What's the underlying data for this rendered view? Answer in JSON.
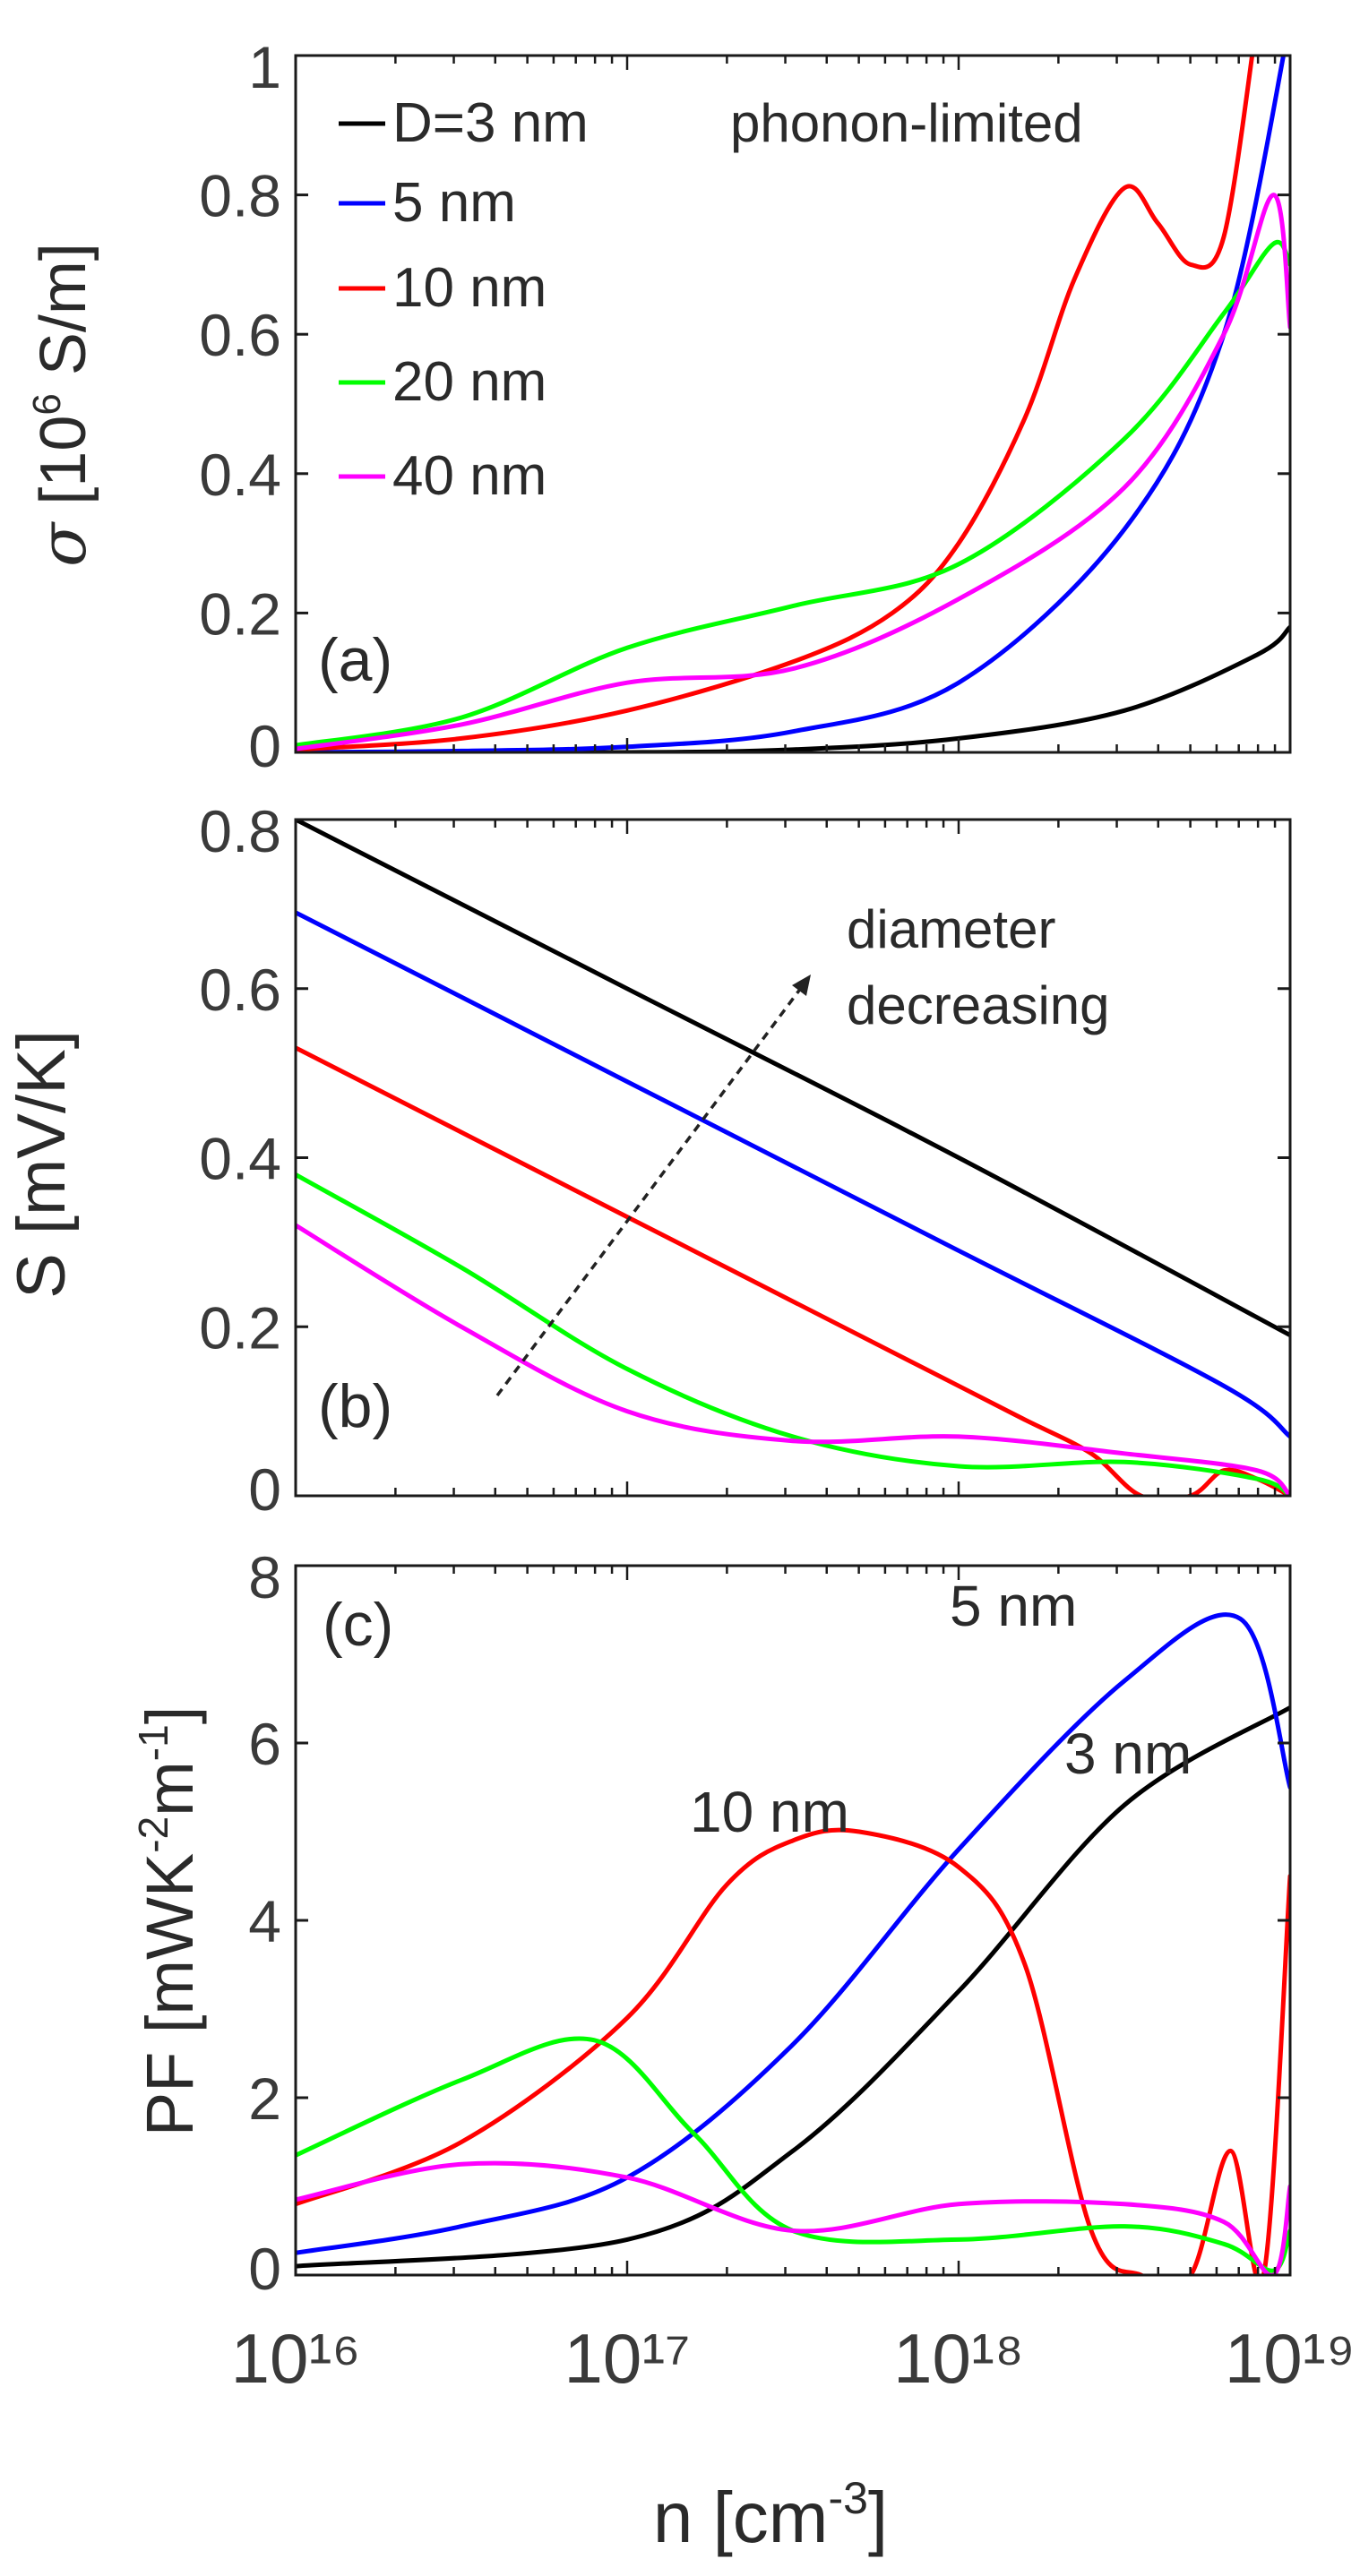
{
  "chart_data": [
    {
      "panel": "(a)",
      "type": "line",
      "xscale": "log",
      "xlim": [
        1e+16,
        1e+19
      ],
      "ylim": [
        0,
        1
      ],
      "yticks": [
        0,
        0.2,
        0.4,
        0.6,
        0.8,
        1
      ],
      "ytick_labels": [
        "0",
        "0.2",
        "0.4",
        "0.6",
        "0.8",
        "1"
      ],
      "ylabel": "σ [10⁶ S/m]",
      "annotation": "phonon-limited",
      "legend_title": "D=",
      "series": [
        {
          "name": "3 nm",
          "color": "#000000",
          "x": [
            16,
            17,
            17.5,
            18,
            18.5,
            18.9,
            19
          ],
          "y": [
            0,
            0,
            0.004,
            0.02,
            0.06,
            0.14,
            0.18
          ]
        },
        {
          "name": "5 nm",
          "color": "#0000ff",
          "x": [
            16,
            16.5,
            17,
            17.5,
            18,
            18.5,
            18.8,
            19
          ],
          "y": [
            0,
            0.002,
            0.008,
            0.03,
            0.1,
            0.32,
            0.6,
            1.05
          ]
        },
        {
          "name": "10 nm",
          "color": "#ff0000",
          "x": [
            16,
            16.5,
            17,
            17.5,
            17.8,
            18,
            18.2,
            18.35,
            18.5,
            18.6,
            18.7,
            18.8,
            18.9
          ],
          "y": [
            0.004,
            0.02,
            0.06,
            0.13,
            0.2,
            0.3,
            0.48,
            0.68,
            0.81,
            0.76,
            0.7,
            0.74,
            1.05
          ]
        },
        {
          "name": "20 nm",
          "color": "#00ff00",
          "x": [
            16,
            16.5,
            17,
            17.5,
            18,
            18.5,
            18.8,
            18.95,
            19
          ],
          "y": [
            0.01,
            0.05,
            0.15,
            0.21,
            0.27,
            0.45,
            0.63,
            0.73,
            0.7
          ]
        },
        {
          "name": "40 nm",
          "color": "#ff00ff",
          "x": [
            16,
            16.5,
            17,
            17.5,
            18,
            18.5,
            18.8,
            18.95,
            19
          ],
          "y": [
            0.005,
            0.04,
            0.1,
            0.12,
            0.22,
            0.38,
            0.6,
            0.8,
            0.61
          ]
        }
      ]
    },
    {
      "panel": "(b)",
      "type": "line",
      "xscale": "log",
      "xlim": [
        1e+16,
        1e+19
      ],
      "ylim": [
        0,
        0.8
      ],
      "yticks": [
        0,
        0.2,
        0.4,
        0.6,
        0.8
      ],
      "ytick_labels": [
        "0",
        "0.2",
        "0.4",
        "0.6",
        "0.8"
      ],
      "ylabel": "S [mV/K]",
      "annotation": [
        "diameter",
        "decreasing"
      ],
      "series": [
        {
          "name": "3 nm",
          "color": "#000000",
          "x": [
            16,
            17,
            18,
            19
          ],
          "y": [
            0.8,
            0.6,
            0.4,
            0.19
          ]
        },
        {
          "name": "5 nm",
          "color": "#0000ff",
          "x": [
            16,
            17,
            18,
            18.8,
            19
          ],
          "y": [
            0.69,
            0.49,
            0.29,
            0.13,
            0.07
          ]
        },
        {
          "name": "10 nm",
          "color": "#ff0000",
          "x": [
            16,
            17,
            18,
            18.2,
            18.4,
            18.55,
            18.7,
            18.8,
            18.9,
            19
          ],
          "y": [
            0.53,
            0.33,
            0.13,
            0.09,
            0.05,
            0.0,
            0.0,
            0.03,
            0.02,
            0.0
          ]
        },
        {
          "name": "20 nm",
          "color": "#00ff00",
          "x": [
            16,
            16.5,
            17,
            17.5,
            18,
            18.5,
            18.9,
            19
          ],
          "y": [
            0.38,
            0.27,
            0.15,
            0.07,
            0.035,
            0.04,
            0.02,
            0.0
          ]
        },
        {
          "name": "40 nm",
          "color": "#ff00ff",
          "x": [
            16,
            16.5,
            17,
            17.5,
            18,
            18.5,
            18.9,
            19
          ],
          "y": [
            0.32,
            0.2,
            0.1,
            0.065,
            0.07,
            0.05,
            0.03,
            0.0
          ]
        }
      ]
    },
    {
      "panel": "(c)",
      "type": "line",
      "xscale": "log",
      "xlim": [
        1e+16,
        1e+19
      ],
      "ylim": [
        0,
        8
      ],
      "yticks": [
        0,
        2,
        4,
        6,
        8
      ],
      "ytick_labels": [
        "0",
        "2",
        "4",
        "6",
        "8"
      ],
      "ylabel": "PF [mWK⁻²m⁻¹]",
      "xlabel": "n [cm⁻³]",
      "xtick_labels": [
        "10¹⁶",
        "10¹⁷",
        "10¹⁸",
        "10¹⁹"
      ],
      "curve_labels": {
        "n5": "5 nm",
        "n3": "3 nm",
        "n10": "10 nm"
      },
      "series": [
        {
          "name": "3 nm",
          "color": "#000000",
          "x": [
            16,
            17,
            17.5,
            18,
            18.5,
            19
          ],
          "y": [
            0.1,
            0.4,
            1.4,
            3.2,
            5.3,
            6.4
          ]
        },
        {
          "name": "5 nm",
          "color": "#0000ff",
          "x": [
            16,
            16.5,
            17,
            17.5,
            18,
            18.5,
            18.85,
            19
          ],
          "y": [
            0.25,
            0.55,
            1.1,
            2.6,
            4.8,
            6.7,
            7.4,
            5.5
          ]
        },
        {
          "name": "10 nm",
          "color": "#ff0000",
          "x": [
            16,
            16.5,
            17,
            17.3,
            17.5,
            17.7,
            18,
            18.2,
            18.4,
            18.55,
            18.7,
            18.82,
            18.92,
            19
          ],
          "y": [
            0.8,
            1.5,
            2.9,
            4.4,
            4.9,
            5.0,
            4.6,
            3.5,
            0.5,
            0.0,
            0.0,
            1.4,
            0.0,
            4.5
          ]
        },
        {
          "name": "20 nm",
          "color": "#00ff00",
          "x": [
            16,
            16.5,
            16.9,
            17.2,
            17.5,
            18,
            18.5,
            18.8,
            18.95,
            19
          ],
          "y": [
            1.35,
            2.2,
            2.65,
            1.6,
            0.5,
            0.4,
            0.55,
            0.35,
            0.05,
            0.5
          ]
        },
        {
          "name": "40 nm",
          "color": "#ff00ff",
          "x": [
            16,
            16.5,
            17,
            17.5,
            18,
            18.5,
            18.8,
            18.95,
            19
          ],
          "y": [
            0.85,
            1.25,
            1.1,
            0.5,
            0.8,
            0.8,
            0.6,
            0.0,
            1.0
          ]
        }
      ]
    }
  ]
}
